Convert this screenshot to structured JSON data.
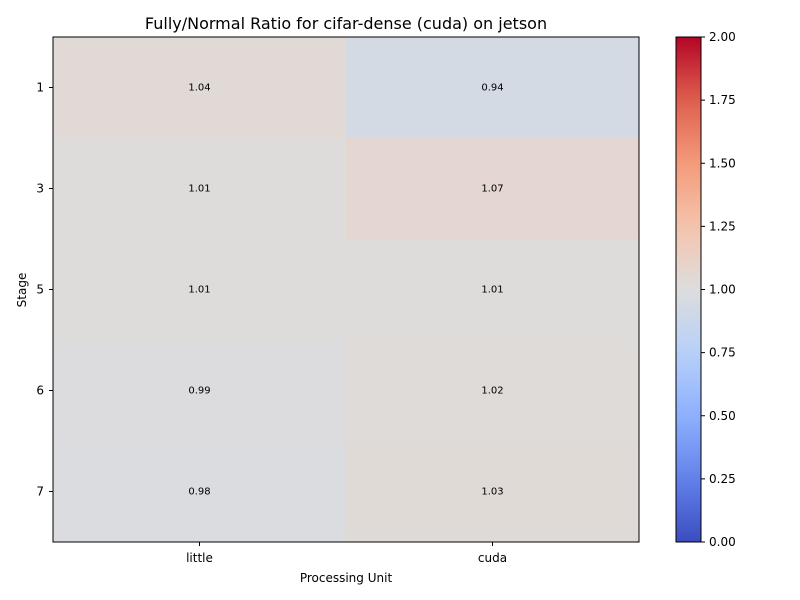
{
  "chart_data": {
    "type": "heatmap",
    "title": "Fully/Normal Ratio for cifar-dense (cuda) on jetson",
    "xlabel": "Processing Unit",
    "ylabel": "Stage",
    "x_categories": [
      "little",
      "cuda"
    ],
    "y_categories": [
      "1",
      "3",
      "5",
      "6",
      "7"
    ],
    "values": [
      [
        1.04,
        0.94
      ],
      [
        1.01,
        1.07
      ],
      [
        1.01,
        1.01
      ],
      [
        0.99,
        1.02
      ],
      [
        0.98,
        1.03
      ]
    ],
    "value_labels": [
      [
        "1.04",
        "0.94"
      ],
      [
        "1.01",
        "1.07"
      ],
      [
        "1.01",
        "1.01"
      ],
      [
        "0.99",
        "1.02"
      ],
      [
        "0.98",
        "1.03"
      ]
    ],
    "colorbar": {
      "colormap": "coolwarm",
      "vmin": 0.0,
      "vmax": 2.0,
      "ticks": [
        "0.00",
        "0.25",
        "0.50",
        "0.75",
        "1.00",
        "1.25",
        "1.50",
        "1.75",
        "2.00"
      ]
    },
    "grid": false,
    "legend": "colorbar-right"
  }
}
